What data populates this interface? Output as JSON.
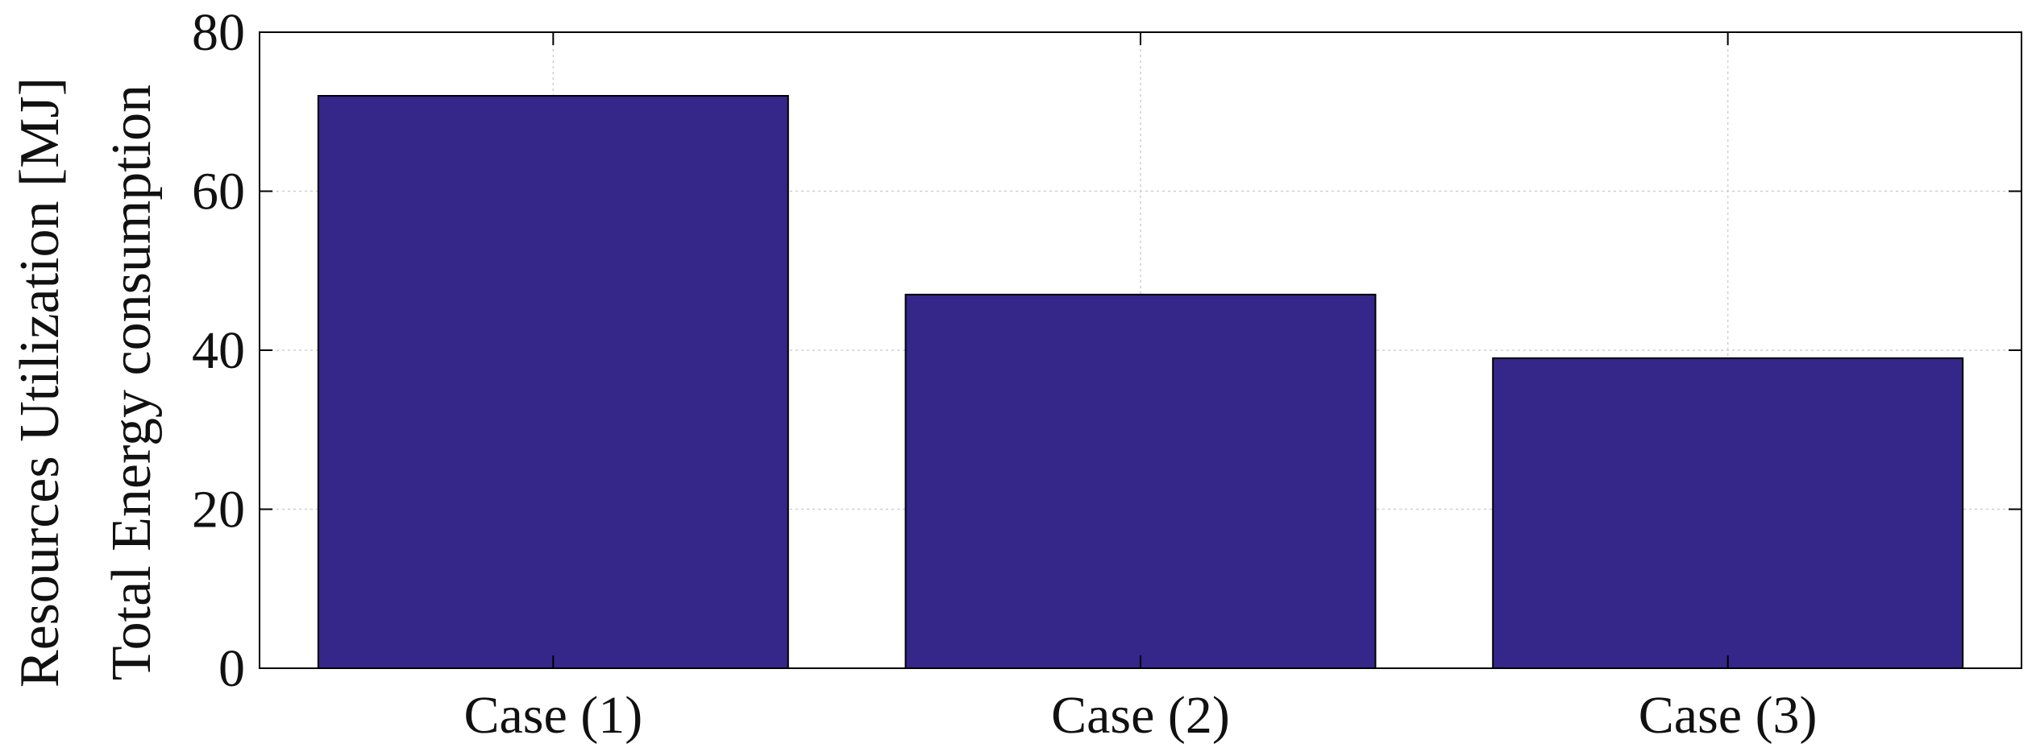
{
  "chart_data": {
    "type": "bar",
    "categories": [
      "Case (1)",
      "Case (2)",
      "Case (3)"
    ],
    "values": [
      72,
      47,
      39
    ],
    "title": "",
    "xlabel": "",
    "ylabel_lines": [
      "Resources Utilization  [MJ]",
      "Total Energy consumption"
    ],
    "ylim": [
      0,
      80
    ],
    "yticks": [
      0,
      20,
      40,
      60,
      80
    ],
    "grid": true,
    "bar_color": "#35268a",
    "bar_edge_color": "#000000",
    "grid_color": "#cfcfcf"
  }
}
